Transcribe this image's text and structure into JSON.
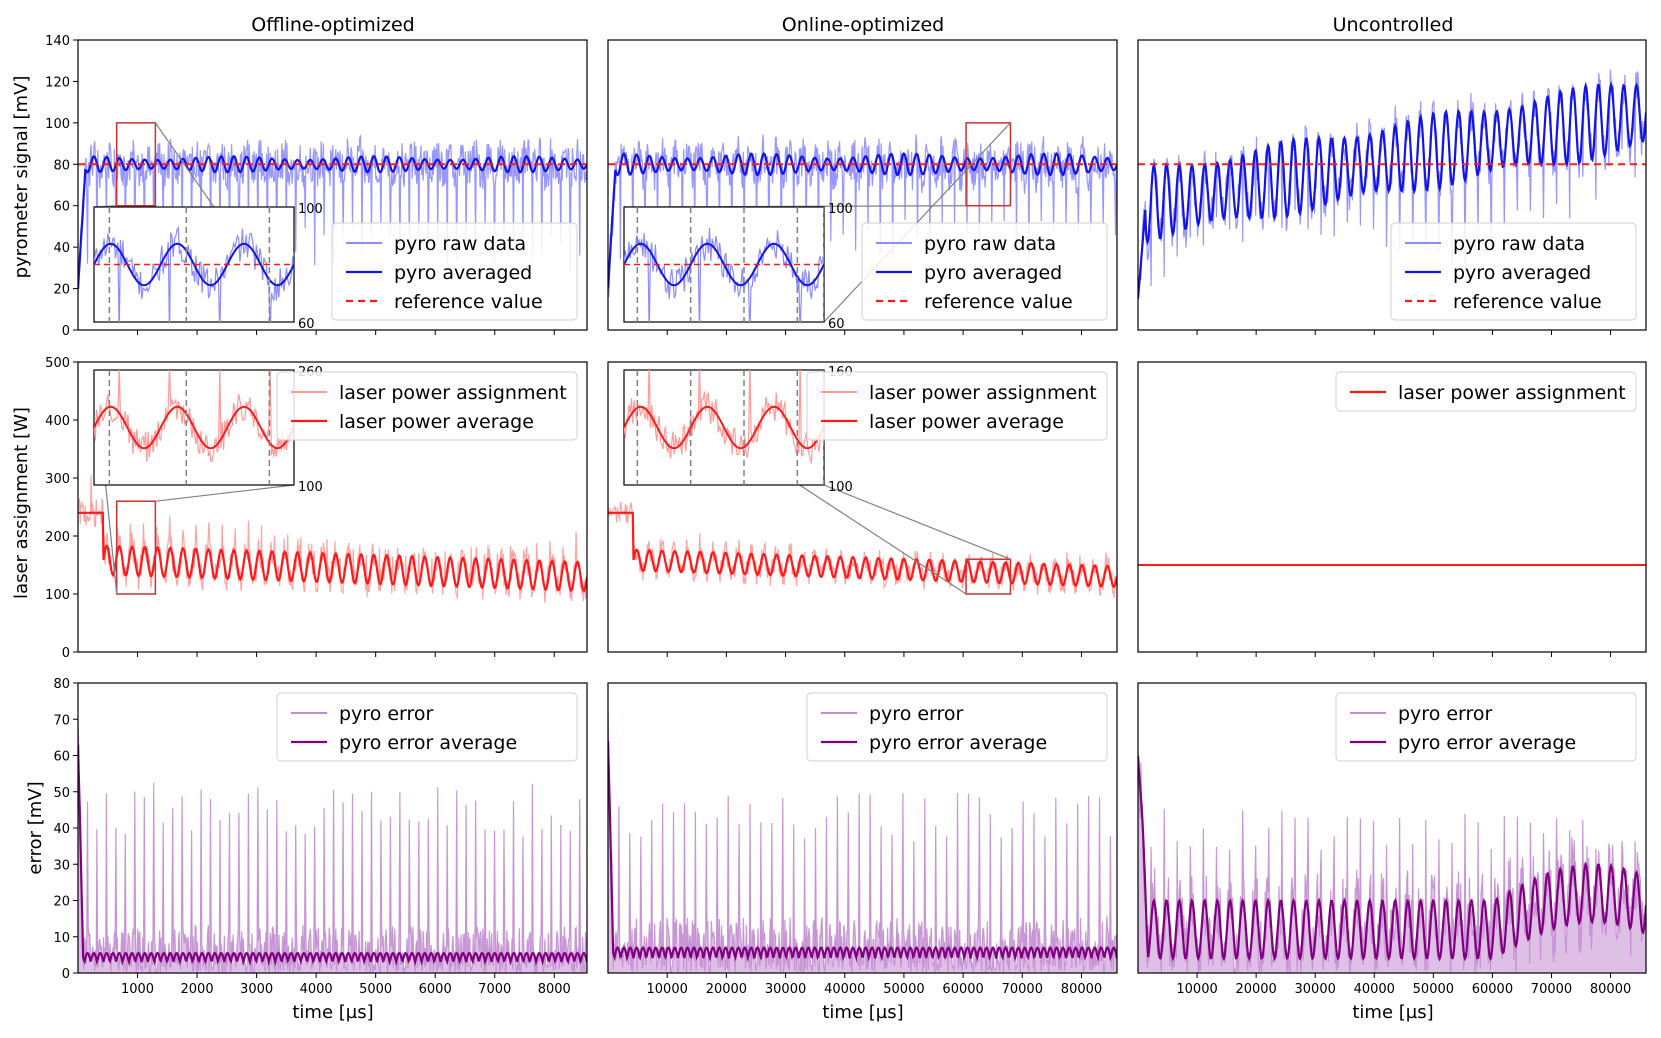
{
  "figure": {
    "columns": [
      "Offline-optimized",
      "Online-optimized",
      "Uncontrolled"
    ],
    "row_ylabels": [
      "pyrometer signal [mV]",
      "laser assignment [W]",
      "error [mV]"
    ],
    "xlabel": "time [µs]"
  },
  "colors": {
    "pyro_raw": "#8c8cff",
    "pyro_avg": "#1414e6",
    "reference": "#ff1a1a",
    "laser_raw": "#ff9a9a",
    "laser_avg": "#ff1a1a",
    "err_raw": "#c38dd2",
    "err_avg": "#800080",
    "zoom_box": "#c83232",
    "dash": "#808080"
  },
  "chart_data": [
    {
      "id": "offline-pyro",
      "type": "line",
      "row": 0,
      "col": 0,
      "title": "Offline-optimized",
      "xlabel": "",
      "ylabel": "pyrometer signal [mV]",
      "xlim": [
        0,
        8550
      ],
      "ylim": [
        0,
        140
      ],
      "xticks": [
        1000,
        2000,
        3000,
        4000,
        5000,
        6000,
        7000,
        8000
      ],
      "xticklabels": [],
      "yticks": [
        0,
        20,
        40,
        60,
        80,
        100,
        120,
        140
      ],
      "yticklabels": [
        "0",
        "20",
        "40",
        "60",
        "80",
        "100",
        "120",
        "140"
      ],
      "kind": "pyro",
      "steady": 80,
      "osc": 3,
      "noise": 10,
      "spikes": 56,
      "spike_depth": 45,
      "trend": 0,
      "reference": 80,
      "series": [
        {
          "name": "pyro raw data",
          "role": "raw"
        },
        {
          "name": "pyro averaged",
          "role": "avg"
        },
        {
          "name": "reference value",
          "role": "ref"
        }
      ],
      "legend": [
        "pyro raw data",
        "pyro averaged",
        "reference value"
      ],
      "legend_loc": "lower-right",
      "inset": {
        "x_range": [
          650,
          1300
        ],
        "y_range": [
          60,
          100
        ],
        "yticklabels": [
          "60",
          "100"
        ],
        "dashed_x": [
          700,
          950,
          1220
        ],
        "loc": "lower-left"
      }
    },
    {
      "id": "online-pyro",
      "type": "line",
      "row": 0,
      "col": 1,
      "title": "Online-optimized",
      "xlabel": "",
      "ylabel": "",
      "xlim": [
        0,
        86000
      ],
      "ylim": [
        0,
        140
      ],
      "xticks": [
        10000,
        20000,
        30000,
        40000,
        50000,
        60000,
        70000,
        80000
      ],
      "xticklabels": [],
      "yticks": [],
      "yticklabels": [],
      "kind": "pyro",
      "steady": 80,
      "osc": 4,
      "noise": 10,
      "spikes": 42,
      "spike_depth": 45,
      "trend": 0,
      "reference": 80,
      "series": [
        {
          "name": "pyro raw data",
          "role": "raw"
        },
        {
          "name": "pyro averaged",
          "role": "avg"
        },
        {
          "name": "reference value",
          "role": "ref"
        }
      ],
      "legend": [
        "pyro raw data",
        "pyro averaged",
        "reference value"
      ],
      "legend_loc": "lower-right",
      "inset": {
        "x_range": [
          60500,
          68000
        ],
        "y_range": [
          60,
          100
        ],
        "yticklabels": [
          "60",
          "100"
        ],
        "dashed_x": [
          61000,
          63000,
          65000,
          67000,
          68000
        ],
        "loc": "lower-left"
      }
    },
    {
      "id": "uncontrolled-pyro",
      "type": "line",
      "row": 0,
      "col": 2,
      "title": "Uncontrolled",
      "xlabel": "",
      "ylabel": "",
      "xlim": [
        0,
        86000
      ],
      "ylim": [
        0,
        140
      ],
      "xticks": [
        10000,
        20000,
        30000,
        40000,
        50000,
        60000,
        70000,
        80000
      ],
      "xticklabels": [],
      "yticks": [],
      "yticklabels": [],
      "kind": "pyro",
      "steady": 60,
      "osc": 8,
      "noise": 10,
      "spikes": 40,
      "spike_depth": 40,
      "trend": 45,
      "reference": 80,
      "series": [
        {
          "name": "pyro raw data",
          "role": "raw"
        },
        {
          "name": "pyro averaged",
          "role": "avg"
        },
        {
          "name": "reference value",
          "role": "ref"
        }
      ],
      "legend": [
        "pyro raw data",
        "pyro averaged",
        "reference value"
      ],
      "legend_loc": "lower-right"
    },
    {
      "id": "offline-laser",
      "type": "line",
      "row": 1,
      "col": 0,
      "title": "",
      "xlabel": "",
      "ylabel": "laser assignment [W]",
      "xlim": [
        0,
        8550
      ],
      "ylim": [
        0,
        500
      ],
      "xticks": [
        1000,
        2000,
        3000,
        4000,
        5000,
        6000,
        7000,
        8000
      ],
      "xticklabels": [],
      "yticks": [
        0,
        100,
        200,
        300,
        400,
        500
      ],
      "yticklabels": [
        "0",
        "100",
        "200",
        "300",
        "400",
        "500"
      ],
      "kind": "laser",
      "steady": 130,
      "osc": 25,
      "noise": 25,
      "spikes": 40,
      "spike_depth": 60,
      "trend": 0,
      "series": [
        {
          "name": "laser power assignment",
          "role": "raw"
        },
        {
          "name": "laser power average",
          "role": "avg"
        }
      ],
      "legend": [
        "laser power assignment",
        "laser power average"
      ],
      "legend_loc": "upper-right",
      "inset": {
        "x_range": [
          650,
          1300
        ],
        "y_range": [
          100,
          260
        ],
        "yticklabels": [
          "100",
          "260"
        ],
        "dashed_x": [
          700,
          950,
          1220
        ],
        "loc": "upper-left"
      }
    },
    {
      "id": "online-laser",
      "type": "line",
      "row": 1,
      "col": 1,
      "title": "",
      "xlabel": "",
      "ylabel": "",
      "xlim": [
        0,
        86000
      ],
      "ylim": [
        0,
        500
      ],
      "xticks": [
        10000,
        20000,
        30000,
        40000,
        50000,
        60000,
        70000,
        80000
      ],
      "xticklabels": [],
      "yticks": [],
      "yticklabels": [],
      "kind": "laser",
      "steady": 130,
      "osc": 18,
      "noise": 20,
      "spikes": 40,
      "spike_depth": 30,
      "trend": 0,
      "series": [
        {
          "name": "laser power assignment",
          "role": "raw"
        },
        {
          "name": "laser power average",
          "role": "avg"
        }
      ],
      "legend": [
        "laser power assignment",
        "laser power average"
      ],
      "legend_loc": "upper-right",
      "inset": {
        "x_range": [
          60500,
          68000
        ],
        "y_range": [
          100,
          160
        ],
        "yticklabels": [
          "100",
          "160"
        ],
        "dashed_x": [
          61000,
          63000,
          65000,
          67000,
          68000
        ],
        "loc": "upper-left"
      }
    },
    {
      "id": "uncontrolled-laser",
      "type": "line",
      "row": 1,
      "col": 2,
      "title": "",
      "xlabel": "",
      "ylabel": "",
      "xlim": [
        0,
        86000
      ],
      "ylim": [
        0,
        500
      ],
      "xticks": [
        10000,
        20000,
        30000,
        40000,
        50000,
        60000,
        70000,
        80000
      ],
      "xticklabels": [],
      "yticks": [],
      "yticklabels": [],
      "kind": "constant",
      "value": 150,
      "series": [
        {
          "name": "laser power assignment",
          "role": "avg"
        }
      ],
      "legend": [
        "laser power assignment"
      ],
      "legend_loc": "upper-right"
    },
    {
      "id": "offline-error",
      "type": "line",
      "row": 2,
      "col": 0,
      "title": "",
      "xlabel": "time [µs]",
      "ylabel": "error [mV]",
      "xlim": [
        0,
        8550
      ],
      "ylim": [
        0,
        80
      ],
      "xticks": [
        1000,
        2000,
        3000,
        4000,
        5000,
        6000,
        7000,
        8000
      ],
      "xticklabels": [
        "1000",
        "2000",
        "3000",
        "4000",
        "5000",
        "6000",
        "7000",
        "8000"
      ],
      "yticks": [
        0,
        10,
        20,
        30,
        40,
        50,
        60,
        70,
        80
      ],
      "yticklabels": [
        "0",
        "10",
        "20",
        "30",
        "40",
        "50",
        "60",
        "70",
        "80"
      ],
      "kind": "error",
      "steady": 3,
      "osc": 2.5,
      "noise": 8,
      "spikes": 56,
      "spike_depth": 50,
      "trend": 0,
      "series": [
        {
          "name": "pyro error",
          "role": "raw"
        },
        {
          "name": "pyro error average",
          "role": "avg"
        }
      ],
      "legend": [
        "pyro error",
        "pyro error average"
      ],
      "legend_loc": "upper-right"
    },
    {
      "id": "online-error",
      "type": "line",
      "row": 2,
      "col": 1,
      "title": "",
      "xlabel": "time [µs]",
      "ylabel": "",
      "xlim": [
        0,
        86000
      ],
      "ylim": [
        0,
        80
      ],
      "xticks": [
        10000,
        20000,
        30000,
        40000,
        50000,
        60000,
        70000,
        80000
      ],
      "xticklabels": [
        "10000",
        "20000",
        "30000",
        "40000",
        "50000",
        "60000",
        "70000",
        "80000"
      ],
      "yticks": [],
      "yticklabels": [],
      "kind": "error",
      "steady": 4,
      "osc": 3,
      "noise": 9,
      "spikes": 46,
      "spike_depth": 48,
      "trend": 0,
      "series": [
        {
          "name": "pyro error",
          "role": "raw"
        },
        {
          "name": "pyro error average",
          "role": "avg"
        }
      ],
      "legend": [
        "pyro error",
        "pyro error average"
      ],
      "legend_loc": "upper-right"
    },
    {
      "id": "uncontrolled-error",
      "type": "line",
      "row": 2,
      "col": 2,
      "title": "",
      "xlabel": "time [µs]",
      "ylabel": "",
      "xlim": [
        0,
        86000
      ],
      "ylim": [
        0,
        80
      ],
      "xticks": [
        10000,
        20000,
        30000,
        40000,
        50000,
        60000,
        70000,
        80000
      ],
      "xticklabels": [
        "10000",
        "20000",
        "30000",
        "40000",
        "50000",
        "60000",
        "70000",
        "80000"
      ],
      "yticks": [],
      "yticklabels": [],
      "kind": "error-unc",
      "steady": 12,
      "osc": 8,
      "noise": 10,
      "spikes": 40,
      "spike_depth": 45,
      "trend": 0,
      "series": [
        {
          "name": "pyro error",
          "role": "raw"
        },
        {
          "name": "pyro error average",
          "role": "avg"
        }
      ],
      "legend": [
        "pyro error",
        "pyro error average"
      ],
      "legend_loc": "upper-right"
    }
  ]
}
